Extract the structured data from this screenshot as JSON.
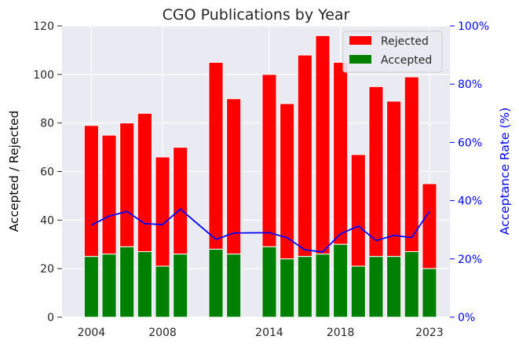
{
  "chart_data": {
    "type": "bar",
    "title": "CGO Publications by Year",
    "ylabel": "Accepted / Rejected",
    "y2label": "Acceptance Rate (%)",
    "years": [
      2004,
      2005,
      2006,
      2007,
      2008,
      2009,
      2011,
      2012,
      2014,
      2015,
      2016,
      2017,
      2018,
      2019,
      2020,
      2021,
      2022,
      2023
    ],
    "series": [
      {
        "name": "Accepted",
        "color": "#008000",
        "values": [
          25,
          26,
          29,
          27,
          21,
          26,
          28,
          26,
          29,
          24,
          25,
          26,
          30,
          21,
          25,
          25,
          27,
          20
        ]
      },
      {
        "name": "Rejected",
        "color": "#ff0000",
        "values": [
          54,
          49,
          51,
          57,
          45,
          44,
          77,
          64,
          71,
          64,
          83,
          90,
          75,
          46,
          70,
          64,
          72,
          35
        ]
      }
    ],
    "acceptance_rate": {
      "color": "#0000ff",
      "values": [
        31.6,
        34.7,
        36.3,
        32.1,
        31.8,
        37.1,
        26.7,
        28.9,
        29.0,
        27.3,
        23.1,
        22.4,
        28.6,
        31.3,
        26.3,
        28.1,
        27.3,
        36.4
      ]
    },
    "xticks": [
      "2004",
      "2008",
      "2014",
      "2018",
      "2023"
    ],
    "xtick_years": [
      2004,
      2008,
      2014,
      2018,
      2023
    ],
    "yticks": [
      "0",
      "20",
      "40",
      "60",
      "80",
      "100",
      "120"
    ],
    "ylim": [
      0,
      120
    ],
    "y2ticks": [
      "0%",
      "20%",
      "40%",
      "60%",
      "80%",
      "100%"
    ],
    "y2lim": [
      0,
      100
    ],
    "legend_position": "top-right",
    "grid": true
  }
}
